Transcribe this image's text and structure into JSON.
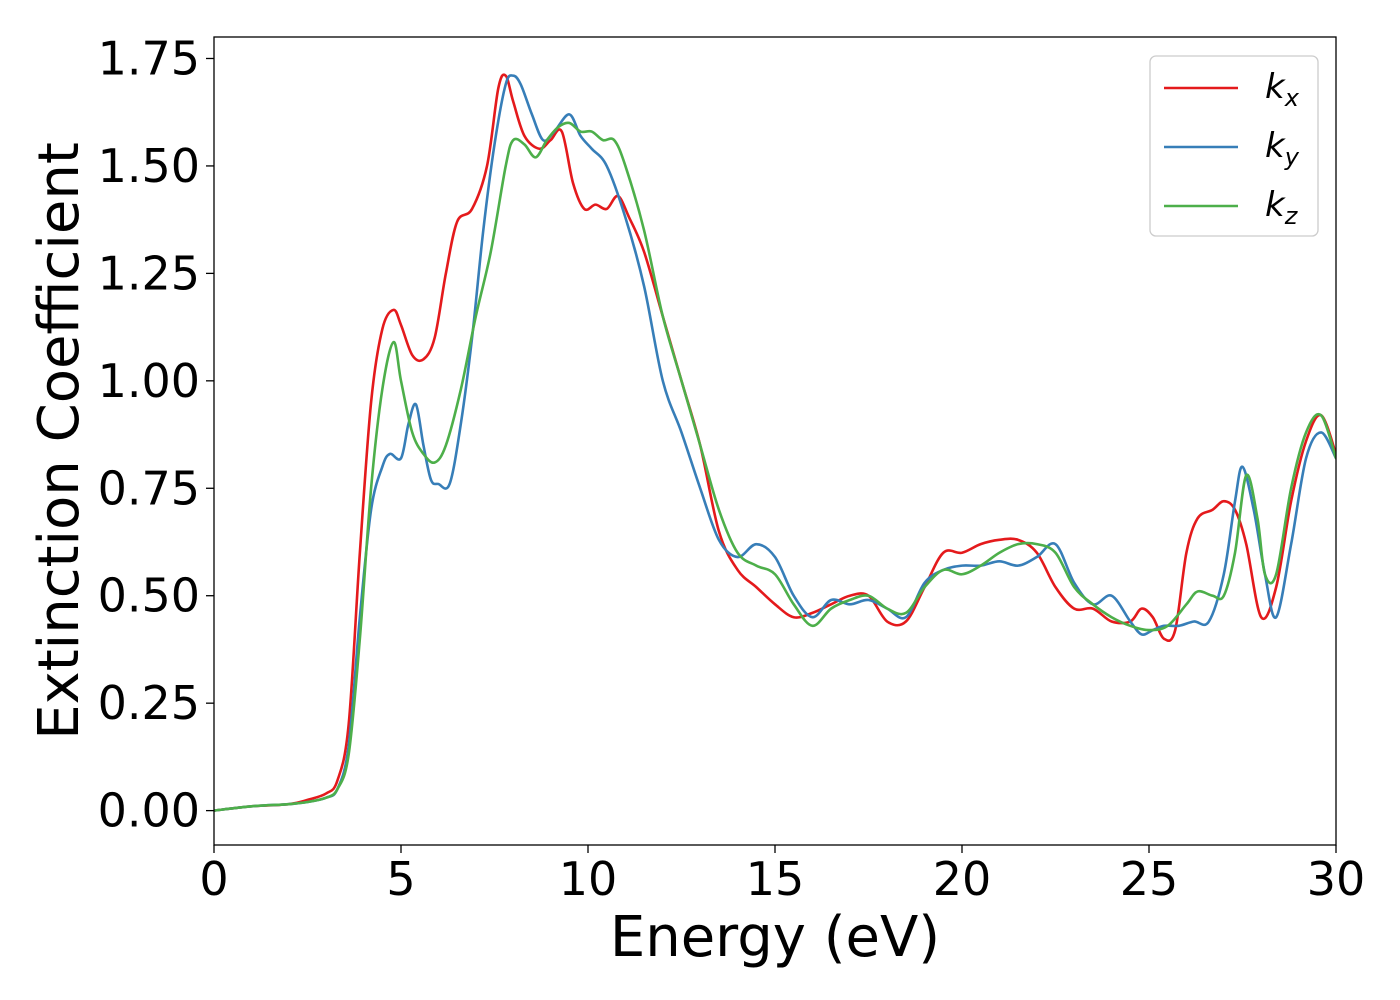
{
  "chart_data": {
    "type": "line",
    "title": "",
    "xlabel": "Energy (eV)",
    "ylabel": "Extinction Coefficient",
    "xlim": [
      0,
      30
    ],
    "ylim": [
      -0.08,
      1.8
    ],
    "xticks": [
      "0",
      "5",
      "10",
      "15",
      "20",
      "25",
      "30"
    ],
    "yticks": [
      "0.00",
      "0.25",
      "0.50",
      "0.75",
      "1.00",
      "1.25",
      "1.50",
      "1.75"
    ],
    "grid": false,
    "legend": {
      "position": "top-right",
      "entries": [
        {
          "base": "k",
          "sub": "x",
          "color": "#e41a1c"
        },
        {
          "base": "k",
          "sub": "y",
          "color": "#377eb8"
        },
        {
          "base": "k",
          "sub": "z",
          "color": "#4daf4a"
        }
      ]
    },
    "series": [
      {
        "name": "k_x",
        "color": "#e41a1c",
        "x": [
          0,
          1,
          2,
          2.5,
          3,
          3.3,
          3.6,
          3.9,
          4.2,
          4.5,
          4.8,
          5.0,
          5.3,
          5.6,
          5.9,
          6.2,
          6.5,
          6.9,
          7.3,
          7.6,
          7.8,
          8.0,
          8.3,
          8.7,
          9.0,
          9.3,
          9.6,
          9.9,
          10.2,
          10.5,
          10.8,
          11.1,
          11.5,
          12,
          12.5,
          13,
          13.5,
          14,
          14.5,
          15,
          15.5,
          16,
          16.5,
          17,
          17.5,
          18,
          18.5,
          19,
          19.5,
          20,
          20.5,
          21,
          21.5,
          22,
          22.5,
          23,
          23.5,
          24,
          24.5,
          24.8,
          25.1,
          25.4,
          25.7,
          26,
          26.3,
          26.7,
          27,
          27.3,
          27.6,
          28,
          28.4,
          28.8,
          29.2,
          29.6,
          30
        ],
        "y": [
          0,
          0.01,
          0.015,
          0.025,
          0.04,
          0.07,
          0.2,
          0.6,
          0.95,
          1.12,
          1.165,
          1.13,
          1.06,
          1.05,
          1.1,
          1.25,
          1.37,
          1.4,
          1.5,
          1.68,
          1.71,
          1.65,
          1.57,
          1.54,
          1.56,
          1.58,
          1.46,
          1.4,
          1.41,
          1.4,
          1.43,
          1.38,
          1.3,
          1.15,
          1.0,
          0.85,
          0.65,
          0.56,
          0.52,
          0.48,
          0.45,
          0.46,
          0.48,
          0.5,
          0.5,
          0.44,
          0.44,
          0.52,
          0.6,
          0.6,
          0.62,
          0.63,
          0.63,
          0.6,
          0.52,
          0.47,
          0.47,
          0.44,
          0.44,
          0.47,
          0.45,
          0.4,
          0.42,
          0.6,
          0.68,
          0.7,
          0.72,
          0.7,
          0.62,
          0.45,
          0.52,
          0.72,
          0.86,
          0.92,
          0.83
        ]
      },
      {
        "name": "k_y",
        "color": "#377eb8",
        "x": [
          0,
          1,
          2,
          2.5,
          3,
          3.3,
          3.6,
          3.9,
          4.2,
          4.5,
          4.7,
          5.0,
          5.2,
          5.4,
          5.6,
          5.8,
          6.0,
          6.3,
          6.6,
          6.9,
          7.2,
          7.5,
          7.8,
          8.0,
          8.2,
          8.5,
          8.8,
          9.1,
          9.5,
          9.8,
          10.1,
          10.5,
          11,
          11.5,
          12,
          12.5,
          13,
          13.5,
          14,
          14.5,
          15,
          15.5,
          16,
          16.5,
          17,
          17.5,
          18,
          18.5,
          19,
          19.5,
          20,
          20.5,
          21,
          21.5,
          22,
          22.5,
          23,
          23.5,
          24,
          24.5,
          24.8,
          25.1,
          25.4,
          25.8,
          26.2,
          26.6,
          27,
          27.3,
          27.5,
          27.8,
          28.1,
          28.4,
          28.8,
          29.2,
          29.6,
          30
        ],
        "y": [
          0,
          0.01,
          0.015,
          0.02,
          0.03,
          0.05,
          0.15,
          0.45,
          0.7,
          0.8,
          0.83,
          0.82,
          0.9,
          0.945,
          0.85,
          0.77,
          0.76,
          0.76,
          0.9,
          1.1,
          1.35,
          1.55,
          1.69,
          1.71,
          1.69,
          1.62,
          1.56,
          1.58,
          1.62,
          1.57,
          1.54,
          1.5,
          1.38,
          1.22,
          1.0,
          0.88,
          0.75,
          0.63,
          0.59,
          0.62,
          0.59,
          0.5,
          0.45,
          0.49,
          0.48,
          0.49,
          0.47,
          0.45,
          0.53,
          0.56,
          0.57,
          0.57,
          0.58,
          0.57,
          0.59,
          0.62,
          0.53,
          0.48,
          0.5,
          0.44,
          0.41,
          0.42,
          0.43,
          0.43,
          0.44,
          0.44,
          0.55,
          0.72,
          0.8,
          0.7,
          0.55,
          0.45,
          0.62,
          0.82,
          0.88,
          0.82
        ]
      },
      {
        "name": "k_z",
        "color": "#4daf4a",
        "x": [
          0,
          1,
          2,
          2.5,
          3,
          3.3,
          3.6,
          3.9,
          4.2,
          4.5,
          4.8,
          5.0,
          5.3,
          5.6,
          5.9,
          6.2,
          6.6,
          7.0,
          7.4,
          7.8,
          8.0,
          8.3,
          8.6,
          8.9,
          9.2,
          9.5,
          9.8,
          10.1,
          10.4,
          10.7,
          11,
          11.5,
          12,
          12.5,
          13,
          13.5,
          14,
          14.5,
          15,
          15.5,
          16,
          16.5,
          17,
          17.5,
          18,
          18.5,
          19,
          19.5,
          20,
          20.5,
          21,
          21.5,
          22,
          22.5,
          23,
          23.5,
          24,
          24.5,
          25,
          25.5,
          26,
          26.3,
          26.7,
          27,
          27.3,
          27.6,
          27.9,
          28.1,
          28.4,
          28.8,
          29.2,
          29.6,
          30
        ],
        "y": [
          0,
          0.01,
          0.015,
          0.02,
          0.03,
          0.05,
          0.13,
          0.4,
          0.75,
          0.98,
          1.09,
          1.0,
          0.88,
          0.83,
          0.81,
          0.85,
          0.98,
          1.15,
          1.3,
          1.5,
          1.56,
          1.55,
          1.52,
          1.56,
          1.59,
          1.6,
          1.58,
          1.58,
          1.56,
          1.56,
          1.5,
          1.35,
          1.15,
          1.0,
          0.85,
          0.7,
          0.6,
          0.57,
          0.55,
          0.48,
          0.43,
          0.47,
          0.49,
          0.5,
          0.47,
          0.46,
          0.52,
          0.56,
          0.55,
          0.57,
          0.6,
          0.62,
          0.62,
          0.6,
          0.52,
          0.48,
          0.45,
          0.43,
          0.42,
          0.43,
          0.48,
          0.51,
          0.5,
          0.5,
          0.6,
          0.78,
          0.68,
          0.55,
          0.55,
          0.75,
          0.88,
          0.92,
          0.82
        ]
      }
    ]
  }
}
